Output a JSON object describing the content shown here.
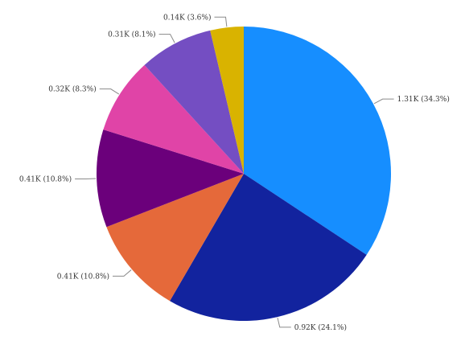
{
  "chart_data": {
    "type": "pie",
    "title": "",
    "slices": [
      {
        "value": 1.31,
        "label": "1.31K (34.3%)",
        "color": "#168eff"
      },
      {
        "value": 0.92,
        "label": "0.92K (24.1%)",
        "color": "#12239e"
      },
      {
        "value": 0.41,
        "label": "0.41K (10.8%)",
        "color": "#e5693a"
      },
      {
        "value": 0.41,
        "label": "0.41K (10.8%)",
        "color": "#6b007b"
      },
      {
        "value": 0.32,
        "label": "0.32K (8.3%)",
        "color": "#e044a7"
      },
      {
        "value": 0.31,
        "label": "0.31K (8.1%)",
        "color": "#744ec2"
      },
      {
        "value": 0.14,
        "label": "0.14K (3.6%)",
        "color": "#d9b300"
      }
    ],
    "start_angle": "12 o'clock",
    "direction": "clockwise",
    "legend": "none"
  }
}
